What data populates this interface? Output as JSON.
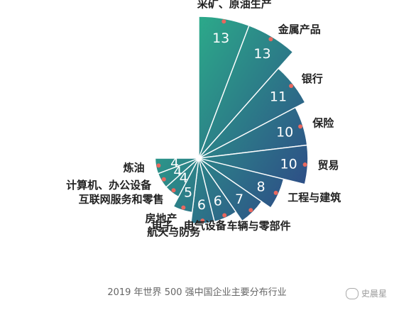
{
  "chart_data": {
    "type": "polar-bar",
    "title": "",
    "caption": "2019 年世界 500 强中国企业主要分布行业",
    "categories": [
      "采矿、原油生产",
      "金属产品",
      "银行",
      "保险",
      "贸易",
      "工程与建筑",
      "车辆与零部件",
      "电子、电气设备",
      "航天与防务",
      "房地产",
      "互联网服务和零售",
      "计算机、办公设备",
      "炼油"
    ],
    "values": [
      13,
      13,
      11,
      10,
      10,
      8,
      7,
      6,
      6,
      5,
      4,
      4,
      4
    ],
    "colors": {
      "start": "#2bb58a",
      "end": "#2e3f86",
      "dot": "#e8685f"
    }
  },
  "watermark": {
    "text": "史晨星",
    "icon": "wechat-icon"
  }
}
